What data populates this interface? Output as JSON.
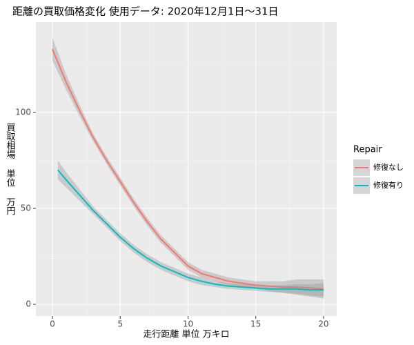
{
  "chart_data": {
    "type": "smooth",
    "title": "距離の買取価格変化 使用データ: 2020年12月1日～31日",
    "xlabel": "走行距離 単位 万キロ",
    "ylabel": "買取相場 単位 万円",
    "legend_title": "Repair",
    "legend_position": "right",
    "xlim": [
      -1.22,
      20.97
    ],
    "ylim": [
      -6.1,
      147.1
    ],
    "xticks": [
      0,
      5,
      10,
      15,
      20
    ],
    "yticks": [
      0,
      50,
      100
    ],
    "x_minor_ticks": [
      2.5,
      7.5,
      12.5,
      17.5
    ],
    "y_minor_ticks": [
      25,
      75,
      125
    ],
    "grid": true,
    "band_color": "#999999",
    "series": [
      {
        "name": "修復なし",
        "color": "#f8766d",
        "x": [
          0,
          1,
          2,
          3,
          4,
          5,
          6,
          7,
          8,
          9,
          10,
          11,
          12,
          13,
          14,
          15,
          16,
          17,
          18,
          19,
          20
        ],
        "values": [
          133,
          116,
          101,
          87,
          75,
          64,
          53,
          43,
          34,
          27,
          20,
          16,
          14,
          12,
          11,
          10,
          9.5,
          9,
          9,
          8.5,
          8
        ],
        "lower": [
          127,
          112,
          98,
          85,
          73,
          62,
          51,
          41,
          32,
          25,
          18,
          14,
          12,
          10,
          9,
          8,
          7,
          6,
          5,
          4,
          3
        ],
        "upper": [
          139,
          120,
          104,
          89,
          77,
          66,
          55,
          45,
          36,
          29,
          22,
          18,
          16,
          14,
          13,
          12,
          12,
          12,
          13,
          13,
          13
        ]
      },
      {
        "name": "修復有り",
        "color": "#00bfc4",
        "x": [
          0.4,
          1,
          2,
          3,
          4,
          5,
          6,
          7,
          8,
          9,
          10,
          11,
          12,
          13,
          14,
          15,
          16,
          17,
          18,
          19,
          20
        ],
        "values": [
          70,
          65,
          57,
          49,
          42,
          35,
          29,
          24,
          20,
          17,
          14,
          12,
          10.5,
          9.5,
          9,
          8.5,
          8,
          8,
          8,
          7.5,
          7.5
        ],
        "lower": [
          65,
          61,
          54,
          47,
          40,
          33,
          27,
          22,
          18,
          15,
          12,
          10,
          9,
          8,
          7.5,
          7,
          6.5,
          6,
          5.5,
          4.5,
          4
        ],
        "upper": [
          75,
          69,
          60,
          51,
          44,
          37,
          31,
          26,
          22,
          19,
          16,
          14,
          12,
          11,
          10.5,
          10,
          9.5,
          10,
          10.5,
          10.5,
          11
        ]
      }
    ]
  }
}
